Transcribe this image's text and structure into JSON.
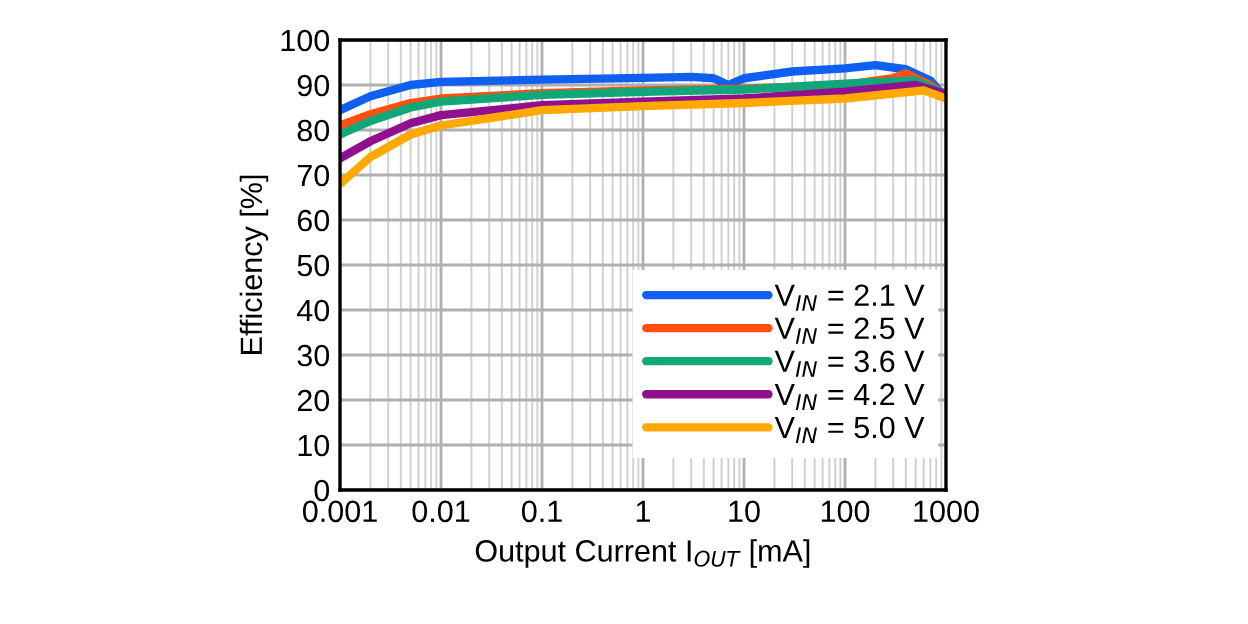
{
  "chart_data": {
    "type": "line",
    "xlabel": "Output Current I$_{OUT}$ [mA]",
    "ylabel": "Efficiency [%]",
    "log": "x",
    "xlim": [
      0.001,
      1000
    ],
    "xticks": [
      0.001,
      0.01,
      0.1,
      1,
      10,
      100,
      1000
    ],
    "ylim": [
      0,
      100
    ],
    "yticks": [
      0,
      10,
      20,
      30,
      40,
      50,
      60,
      70,
      80,
      90,
      100
    ],
    "grid": true,
    "legend": "right",
    "marker": "none",
    "line_style": "solid",
    "series": [
      {
        "name": "V$_{IN}$ = 2.1 V",
        "color": "#1060f0",
        "x": [
          0.001,
          0.002,
          0.005,
          0.01,
          0.1,
          1,
          3,
          5,
          7,
          10,
          30,
          100,
          200,
          400,
          700,
          1000
        ],
        "values": [
          84.4,
          87.5,
          90,
          90.7,
          91.2,
          91.6,
          91.8,
          91.5,
          90,
          91.5,
          93,
          93.7,
          94.4,
          93.5,
          91,
          87
        ]
      },
      {
        "name": "V$_{IN}$ = 2.5 V",
        "color": "#ff5010",
        "x": [
          0.001,
          0.002,
          0.005,
          0.01,
          0.1,
          1,
          10,
          100,
          300,
          400,
          700,
          1000
        ],
        "values": [
          81,
          83.5,
          86,
          87,
          88.2,
          88.8,
          89.2,
          90,
          91.5,
          92.6,
          90,
          87.5
        ]
      },
      {
        "name": "V$_{IN}$ = 3.6 V",
        "color": "#10a878",
        "x": [
          0.001,
          0.002,
          0.005,
          0.01,
          0.1,
          1,
          10,
          100,
          500,
          1000
        ],
        "values": [
          79,
          82,
          85,
          86.3,
          87.8,
          88.5,
          89,
          90.3,
          91,
          88
        ]
      },
      {
        "name": "V$_{IN}$ = 4.2 V",
        "color": "#901090",
        "x": [
          0.001,
          0.002,
          0.005,
          0.01,
          0.1,
          1,
          10,
          100,
          500,
          1000
        ],
        "values": [
          73.7,
          77.5,
          81.5,
          83.3,
          85.5,
          86.3,
          87,
          88.5,
          90,
          88
        ]
      },
      {
        "name": "V$_{IN}$ = 5.0 V",
        "color": "#ffa800",
        "x": [
          0.001,
          0.002,
          0.005,
          0.01,
          0.1,
          1,
          10,
          100,
          600,
          1000
        ],
        "values": [
          68,
          74,
          79,
          81,
          84.4,
          85.3,
          86,
          87,
          88.8,
          87
        ]
      }
    ]
  }
}
